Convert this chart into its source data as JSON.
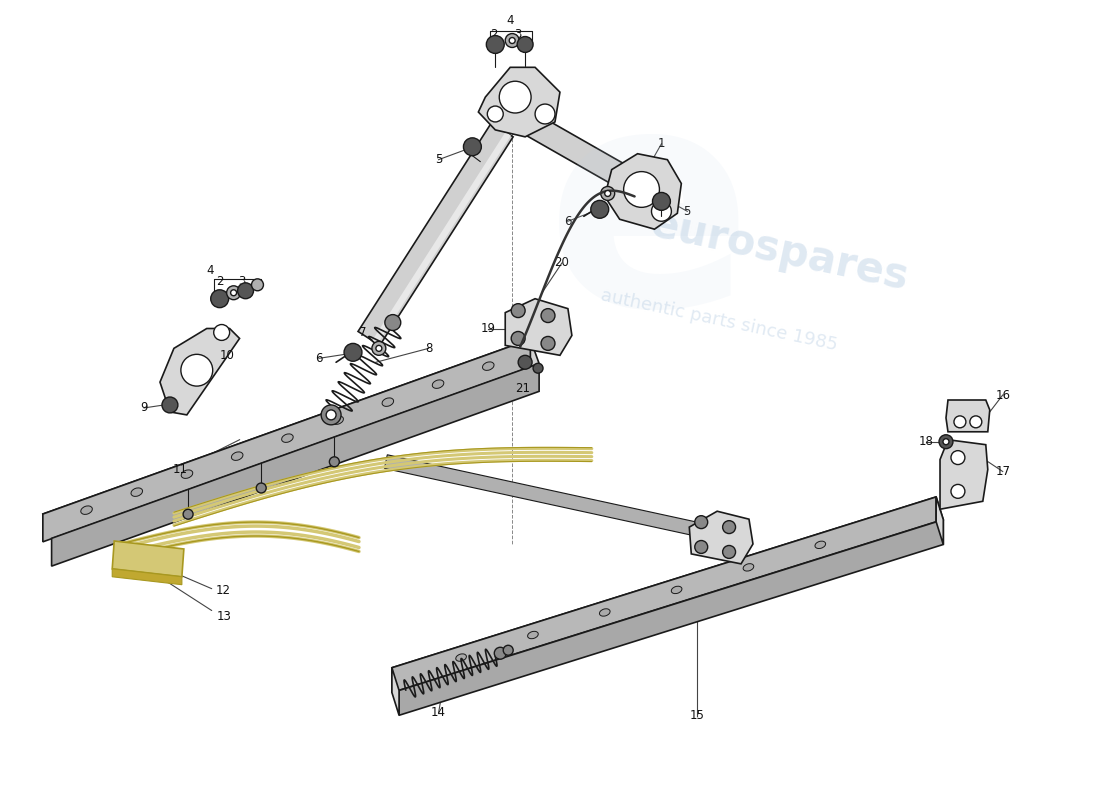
{
  "background_color": "#ffffff",
  "line_color": "#1a1a1a",
  "fig_width": 11.0,
  "fig_height": 8.0,
  "lc_light": "#d8d8d8",
  "lc_mid": "#b0b0b0",
  "lc_dark": "#888888",
  "lc_darker": "#555555",
  "yellow_part": "#d4c875",
  "label_fs": 8.5
}
